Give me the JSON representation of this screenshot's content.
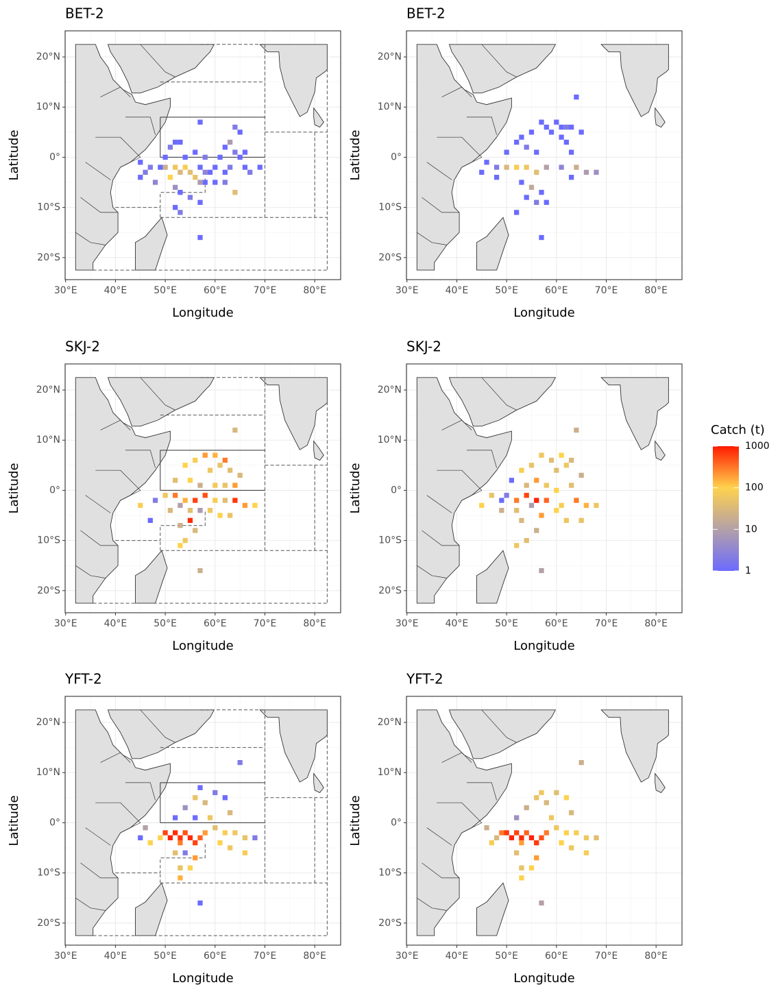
{
  "chart_data": [
    {
      "type": "heatmap",
      "title": "BET-2",
      "xlabel": "Longitude",
      "ylabel": "Latitude",
      "regions": true,
      "xlim": [
        29.9,
        85.2
      ],
      "ylim": [
        -24.4,
        25.2
      ],
      "xticks": [
        {
          "value": 30,
          "label": "30°E"
        },
        {
          "value": 40,
          "label": "40°E"
        },
        {
          "value": 50,
          "label": "50°E"
        },
        {
          "value": 60,
          "label": "60°E"
        },
        {
          "value": 70,
          "label": "70°E"
        },
        {
          "value": 80,
          "label": "80°E"
        }
      ],
      "yticks": [
        {
          "value": 20,
          "label": "20°N"
        },
        {
          "value": 10,
          "label": "10°N"
        },
        {
          "value": 0,
          "label": "0°"
        },
        {
          "value": -10,
          "label": "10°S"
        },
        {
          "value": -20,
          "label": "20°S"
        }
      ],
      "x": [
        57,
        64,
        65,
        52,
        53,
        51,
        56,
        62,
        64,
        66,
        50,
        54,
        58,
        61,
        65,
        45,
        47,
        49,
        57,
        60,
        63,
        66,
        69,
        46,
        59,
        62,
        67,
        45,
        48,
        58,
        60,
        62,
        53,
        55,
        57,
        52,
        53,
        57,
        50,
        52,
        54,
        55,
        53,
        51,
        56,
        57,
        52,
        64,
        63,
        58
      ],
      "y": [
        7,
        6,
        5,
        3,
        3,
        2,
        1,
        2,
        1,
        1,
        0,
        0,
        0,
        0,
        0,
        -1,
        -2,
        -2,
        -2,
        -2,
        -2,
        -2,
        -2,
        -3,
        -3,
        -3,
        -3,
        -4,
        -5,
        -5,
        -5,
        -5,
        -7,
        -8,
        -9,
        -10,
        -11,
        -16,
        -2,
        -2,
        -2,
        -3,
        -3,
        -4,
        -4,
        -5,
        -6,
        -7,
        3,
        -3
      ],
      "values": [
        1,
        2,
        1,
        1,
        1,
        2,
        1,
        1,
        2,
        1,
        1,
        1,
        2,
        1,
        1,
        1,
        2,
        1,
        1,
        1,
        2,
        1,
        1,
        2,
        1,
        1,
        2,
        1,
        3,
        1,
        1,
        2,
        1,
        2,
        1,
        1,
        2,
        1,
        20,
        60,
        80,
        40,
        30,
        100,
        50,
        8,
        5,
        40,
        8,
        3
      ]
    },
    {
      "type": "heatmap",
      "title": "BET-2",
      "xlabel": "Longitude",
      "ylabel": "Latitude",
      "regions": false,
      "xlim": [
        29.9,
        85.2
      ],
      "ylim": [
        -24.4,
        25.2
      ],
      "xticks": [
        {
          "value": 30,
          "label": "30°E"
        },
        {
          "value": 40,
          "label": "40°E"
        },
        {
          "value": 50,
          "label": "50°E"
        },
        {
          "value": 60,
          "label": "60°E"
        },
        {
          "value": 70,
          "label": "70°E"
        },
        {
          "value": 80,
          "label": "80°E"
        }
      ],
      "yticks": [
        {
          "value": 20,
          "label": "20°N"
        },
        {
          "value": 10,
          "label": "10°N"
        },
        {
          "value": 0,
          "label": "0°"
        },
        {
          "value": -10,
          "label": "10°S"
        },
        {
          "value": -20,
          "label": "20°S"
        }
      ],
      "x": [
        60,
        61,
        62,
        63,
        59,
        58,
        57,
        64,
        55,
        53,
        52,
        54,
        50,
        56,
        61,
        62,
        65,
        63,
        46,
        48,
        50,
        52,
        54,
        56,
        58,
        61,
        64,
        66,
        68,
        63,
        53,
        55,
        57,
        54,
        56,
        52,
        58,
        57,
        48,
        45
      ],
      "y": [
        7,
        6,
        6,
        6,
        5,
        6,
        7,
        12,
        5,
        4,
        3,
        2,
        1,
        1,
        4,
        3,
        5,
        1,
        -1,
        -2,
        -2,
        -2,
        -2,
        -3,
        -2,
        -2,
        -2,
        -3,
        -3,
        -4,
        -5,
        -6,
        -7,
        -8,
        -9,
        -11,
        -9,
        -16,
        -4,
        -3
      ],
      "values": [
        1,
        1,
        2,
        1,
        1,
        1,
        1,
        1,
        1,
        1,
        1,
        2,
        1,
        1,
        1,
        1,
        1,
        1,
        1,
        2,
        30,
        80,
        60,
        40,
        10,
        3,
        20,
        8,
        5,
        1,
        1,
        15,
        1,
        1,
        2,
        1,
        1,
        1,
        1,
        1
      ]
    },
    {
      "type": "heatmap",
      "title": "SKJ-2",
      "xlabel": "Longitude",
      "ylabel": "Latitude",
      "regions": true,
      "xlim": [
        29.9,
        85.2
      ],
      "ylim": [
        -24.4,
        25.2
      ],
      "xticks": [
        {
          "value": 30,
          "label": "30°E"
        },
        {
          "value": 40,
          "label": "40°E"
        },
        {
          "value": 50,
          "label": "50°E"
        },
        {
          "value": 60,
          "label": "60°E"
        },
        {
          "value": 70,
          "label": "70°E"
        },
        {
          "value": 80,
          "label": "80°E"
        }
      ],
      "yticks": [
        {
          "value": 20,
          "label": "20°N"
        },
        {
          "value": 10,
          "label": "10°N"
        },
        {
          "value": 0,
          "label": "0°"
        },
        {
          "value": -10,
          "label": "10°S"
        },
        {
          "value": -20,
          "label": "20°S"
        }
      ],
      "x": [
        64,
        58,
        60,
        62,
        56,
        54,
        61,
        59,
        63,
        65,
        52,
        55,
        57,
        60,
        62,
        64,
        50,
        52,
        54,
        56,
        58,
        60,
        62,
        64,
        66,
        68,
        45,
        48,
        51,
        53,
        55,
        57,
        59,
        61,
        63,
        55,
        53,
        56,
        54,
        53,
        57,
        47
      ],
      "y": [
        12,
        7,
        7,
        6,
        6,
        5,
        5,
        4,
        4,
        3,
        2,
        2,
        1,
        1,
        1,
        1,
        -1,
        -1,
        -2,
        -2,
        -1,
        -2,
        -2,
        -2,
        -3,
        -3,
        -3,
        -2,
        -4,
        -3,
        -4,
        -4,
        -4,
        -5,
        -5,
        -6,
        -7,
        -8,
        -10,
        -11,
        -16,
        -6
      ],
      "values": [
        30,
        200,
        150,
        300,
        80,
        100,
        50,
        60,
        40,
        30,
        40,
        100,
        20,
        70,
        50,
        200,
        60,
        300,
        150,
        600,
        500,
        80,
        40,
        700,
        200,
        100,
        80,
        2,
        30,
        10,
        40,
        8,
        60,
        100,
        50,
        800,
        20,
        30,
        60,
        100,
        20,
        1
      ]
    },
    {
      "type": "heatmap",
      "title": "SKJ-2",
      "xlabel": "Longitude",
      "ylabel": "Latitude",
      "regions": false,
      "xlim": [
        29.9,
        85.2
      ],
      "ylim": [
        -24.4,
        25.2
      ],
      "xticks": [
        {
          "value": 30,
          "label": "30°E"
        },
        {
          "value": 40,
          "label": "40°E"
        },
        {
          "value": 50,
          "label": "50°E"
        },
        {
          "value": 60,
          "label": "60°E"
        },
        {
          "value": 70,
          "label": "70°E"
        },
        {
          "value": 80,
          "label": "80°E"
        }
      ],
      "yticks": [
        {
          "value": 20,
          "label": "20°N"
        },
        {
          "value": 10,
          "label": "10°N"
        },
        {
          "value": 0,
          "label": "0°"
        },
        {
          "value": -10,
          "label": "10°S"
        },
        {
          "value": -20,
          "label": "20°S"
        }
      ],
      "x": [
        64,
        57,
        59,
        61,
        63,
        55,
        53,
        60,
        62,
        65,
        51,
        54,
        56,
        58,
        60,
        63,
        47,
        50,
        52,
        54,
        56,
        58,
        61,
        64,
        66,
        68,
        45,
        49,
        52,
        55,
        57,
        60,
        62,
        53,
        56,
        54,
        52,
        57,
        65,
        49
      ],
      "y": [
        12,
        7,
        6,
        7,
        6,
        5,
        4,
        4,
        5,
        3,
        2,
        1,
        2,
        1,
        0,
        1,
        -1,
        -1,
        -2,
        -1,
        -2,
        -2,
        -3,
        -2,
        -3,
        -3,
        -3,
        -4,
        -4,
        -3,
        -5,
        -4,
        -6,
        -6,
        -8,
        -10,
        -11,
        -16,
        -6,
        -2
      ],
      "values": [
        20,
        60,
        40,
        100,
        30,
        50,
        80,
        40,
        60,
        20,
        1,
        30,
        200,
        60,
        100,
        40,
        50,
        2,
        300,
        600,
        900,
        400,
        80,
        300,
        150,
        60,
        100,
        20,
        40,
        8,
        200,
        100,
        60,
        30,
        20,
        40,
        60,
        10,
        50,
        1
      ]
    },
    {
      "type": "heatmap",
      "title": "YFT-2",
      "xlabel": "Longitude",
      "ylabel": "Latitude",
      "regions": true,
      "xlim": [
        29.9,
        85.2
      ],
      "ylim": [
        -24.4,
        25.2
      ],
      "xticks": [
        {
          "value": 30,
          "label": "30°E"
        },
        {
          "value": 40,
          "label": "40°E"
        },
        {
          "value": 50,
          "label": "50°E"
        },
        {
          "value": 60,
          "label": "60°E"
        },
        {
          "value": 70,
          "label": "70°E"
        },
        {
          "value": 80,
          "label": "80°E"
        }
      ],
      "yticks": [
        {
          "value": 20,
          "label": "20°N"
        },
        {
          "value": 10,
          "label": "10°N"
        },
        {
          "value": 0,
          "label": "0°"
        },
        {
          "value": -10,
          "label": "10°S"
        },
        {
          "value": -20,
          "label": "20°S"
        }
      ],
      "x": [
        50,
        51,
        52,
        53,
        54,
        55,
        56,
        57,
        53,
        49,
        58,
        60,
        62,
        64,
        66,
        68,
        65,
        57,
        60,
        62,
        56,
        58,
        54,
        52,
        56,
        59,
        63,
        46,
        47,
        52,
        54,
        56,
        53,
        55,
        53,
        57,
        45,
        61,
        63,
        66
      ],
      "y": [
        -2,
        -3,
        -2,
        -3,
        -2,
        -3,
        -4,
        -3,
        -4,
        -3,
        -2,
        -1,
        -2,
        -2,
        -3,
        -3,
        12,
        7,
        6,
        5,
        5,
        4,
        3,
        1,
        1,
        1,
        2,
        -1,
        -4,
        -6,
        -6,
        -7,
        -9,
        -9,
        -11,
        -16,
        -3,
        -4,
        -5,
        -6
      ],
      "values": [
        600,
        900,
        800,
        700,
        500,
        800,
        600,
        400,
        300,
        100,
        200,
        40,
        80,
        60,
        50,
        2,
        2,
        1,
        2,
        1,
        50,
        30,
        5,
        1,
        1,
        60,
        30,
        10,
        100,
        40,
        2,
        200,
        50,
        100,
        150,
        1,
        1,
        100,
        60,
        80
      ]
    },
    {
      "type": "heatmap",
      "title": "YFT-2",
      "xlabel": "Longitude",
      "ylabel": "Latitude",
      "regions": false,
      "xlim": [
        29.9,
        85.2
      ],
      "ylim": [
        -24.4,
        25.2
      ],
      "xticks": [
        {
          "value": 30,
          "label": "30°E"
        },
        {
          "value": 40,
          "label": "40°E"
        },
        {
          "value": 50,
          "label": "50°E"
        },
        {
          "value": 60,
          "label": "60°E"
        },
        {
          "value": 70,
          "label": "70°E"
        },
        {
          "value": 80,
          "label": "80°E"
        }
      ],
      "yticks": [
        {
          "value": 20,
          "label": "20°N"
        },
        {
          "value": 10,
          "label": "10°N"
        },
        {
          "value": 0,
          "label": "0°"
        },
        {
          "value": -10,
          "label": "10°S"
        },
        {
          "value": -20,
          "label": "20°S"
        }
      ],
      "x": [
        50,
        51,
        52,
        53,
        54,
        55,
        56,
        57,
        53,
        49,
        58,
        60,
        62,
        64,
        66,
        68,
        65,
        57,
        60,
        62,
        56,
        58,
        54,
        52,
        59,
        63,
        46,
        47,
        52,
        56,
        53,
        55,
        53,
        57,
        61,
        63,
        66,
        48
      ],
      "y": [
        -2,
        -3,
        -2,
        -3,
        -2,
        -3,
        -4,
        -3,
        -4,
        -2,
        -2,
        -1,
        -2,
        -2,
        -3,
        -3,
        12,
        6,
        6,
        5,
        5,
        4,
        3,
        1,
        1,
        2,
        -1,
        -4,
        -6,
        -7,
        -9,
        -9,
        -11,
        -16,
        -4,
        -5,
        -6,
        -3
      ],
      "values": [
        700,
        900,
        600,
        800,
        400,
        900,
        700,
        500,
        200,
        300,
        300,
        60,
        100,
        80,
        60,
        40,
        20,
        60,
        40,
        100,
        50,
        30,
        20,
        5,
        60,
        30,
        20,
        80,
        40,
        200,
        50,
        100,
        100,
        10,
        100,
        60,
        80,
        30
      ]
    }
  ],
  "colorbar": {
    "title": "Catch (t)",
    "scale": "log",
    "lim": [
      1,
      1000
    ],
    "ticks": [
      1,
      10,
      100,
      1000
    ],
    "colors": [
      "#6b6bff",
      "#b4a0a8",
      "#ffd24d",
      "#ff1a00"
    ]
  }
}
